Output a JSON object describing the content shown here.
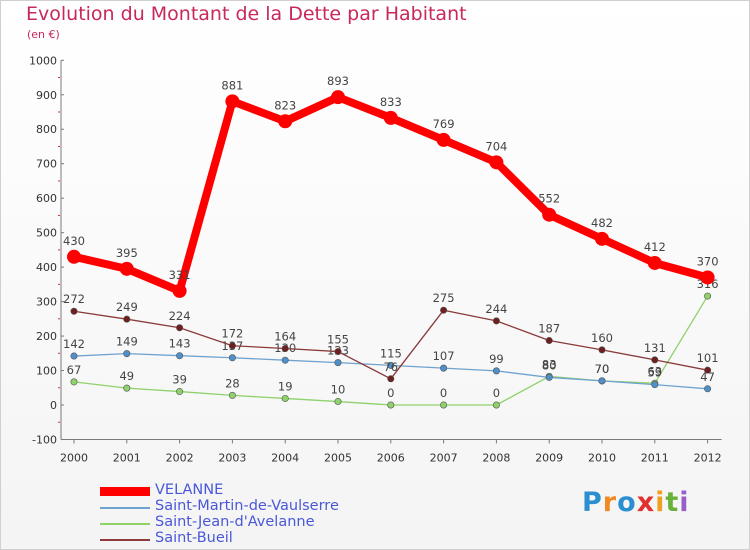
{
  "title": "Evolution du Montant de la Dette par Habitant",
  "subtitle": "(en €)",
  "logo": "Proxiti",
  "chart_data": {
    "type": "line",
    "title": "Evolution du Montant de la Dette par Habitant",
    "ylabel": "(en €)",
    "x": [
      2000,
      2001,
      2002,
      2003,
      2004,
      2005,
      2006,
      2007,
      2008,
      2009,
      2010,
      2011,
      2012
    ],
    "ylim": [
      -100,
      1000
    ],
    "yticks": [
      -100,
      0,
      100,
      200,
      300,
      400,
      500,
      600,
      700,
      800,
      900,
      1000
    ],
    "grid": false,
    "legend_position": "bottom-left",
    "series": [
      {
        "name": "Saint-Jean-d'Avelanne",
        "color": "#8fd16a",
        "width": 1.3,
        "marker_color": "#8fd16a",
        "values": [
          67,
          49,
          39,
          28,
          19,
          10,
          0,
          0,
          0,
          83,
          70,
          63,
          316
        ],
        "labels": [
          "67",
          "49",
          "39",
          "28",
          "19",
          "10",
          "0",
          "0",
          "0",
          "83",
          "70",
          "63",
          "316"
        ]
      },
      {
        "name": "Saint-Martin-de-Vaulserre",
        "color": "#6fa3cf",
        "width": 1.3,
        "marker_color": "#4f8fca",
        "values": [
          142,
          149,
          143,
          137,
          130,
          123,
          115,
          107,
          99,
          80,
          70,
          59,
          47
        ],
        "labels": [
          "142",
          "149",
          "143",
          "137",
          "130",
          "123",
          "115",
          "107",
          "99",
          "80",
          "70",
          "59",
          "47"
        ]
      },
      {
        "name": "Saint-Bueil",
        "color": "#8a3a3a",
        "width": 1.3,
        "marker_color": "#6e1f1f",
        "values": [
          272,
          249,
          224,
          172,
          164,
          155,
          76,
          275,
          244,
          187,
          160,
          131,
          101
        ],
        "labels": [
          "272",
          "249",
          "224",
          "172",
          "164",
          "155",
          "76",
          "275",
          "244",
          "187",
          "160",
          "131",
          "101"
        ]
      },
      {
        "name": "VELANNE",
        "color": "#ff0000",
        "width": 8,
        "marker_color": "#ff0000",
        "values": [
          430,
          395,
          331,
          881,
          823,
          893,
          833,
          769,
          704,
          552,
          482,
          412,
          370
        ],
        "labels": [
          "430",
          "395",
          "331",
          "881",
          "823",
          "893",
          "833",
          "769",
          "704",
          "552",
          "482",
          "412",
          "370"
        ]
      }
    ],
    "legend": [
      "VELANNE",
      "Saint-Martin-de-Vaulserre",
      "Saint-Jean-d'Avelanne",
      "Saint-Bueil"
    ],
    "legend_colors": [
      "#ff0000",
      "#6fa3cf",
      "#8fd16a",
      "#8a3a3a"
    ]
  }
}
